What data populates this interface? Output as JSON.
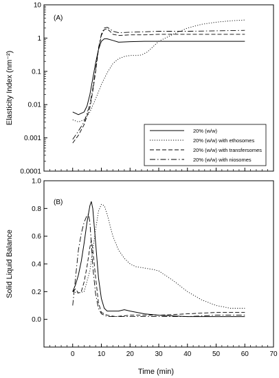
{
  "chart_data": [
    {
      "type": "line",
      "panel_label": "(A)",
      "xlabel": "",
      "ylabel": "Elasticity Index (nm⁻²)",
      "xlim": [
        -10,
        70
      ],
      "ylim": [
        0.0001,
        10
      ],
      "yscale": "log",
      "grid": false,
      "legend_placement": "lower-right",
      "y_ticks": [
        "10",
        "1",
        "0.1",
        "0.01",
        "0.001",
        "0.0001"
      ],
      "series": [
        {
          "name": "20% (w/w)",
          "style": "solid",
          "x": [
            0,
            2,
            4,
            5,
            6,
            7,
            8,
            9,
            10,
            11,
            12,
            14,
            16,
            20,
            25,
            30,
            40,
            50,
            60
          ],
          "y": [
            0.006,
            0.005,
            0.006,
            0.009,
            0.02,
            0.06,
            0.18,
            0.45,
            0.8,
            0.95,
            0.95,
            0.85,
            0.75,
            0.78,
            0.8,
            0.8,
            0.8,
            0.8,
            0.8
          ]
        },
        {
          "name": "20% (w/w) with ethosomes",
          "style": "dotted",
          "x": [
            0,
            2,
            4,
            6,
            8,
            10,
            12,
            14,
            16,
            18,
            20,
            22,
            24,
            26,
            28,
            30,
            35,
            40,
            45,
            50,
            55,
            60
          ],
          "y": [
            0.0035,
            0.003,
            0.0035,
            0.006,
            0.015,
            0.04,
            0.09,
            0.17,
            0.24,
            0.28,
            0.3,
            0.3,
            0.31,
            0.38,
            0.55,
            0.8,
            1.3,
            2.0,
            2.6,
            3.0,
            3.3,
            3.5
          ]
        },
        {
          "name": "20% (w/w) with transfersomes",
          "style": "dashed",
          "x": [
            0,
            2,
            4,
            6,
            7,
            8,
            9,
            10,
            11,
            12,
            13,
            14,
            16,
            20,
            25,
            30,
            40,
            50,
            60
          ],
          "y": [
            0.0007,
            0.0012,
            0.0025,
            0.008,
            0.025,
            0.1,
            0.45,
            1.2,
            1.8,
            1.9,
            1.6,
            1.3,
            1.2,
            1.25,
            1.25,
            1.3,
            1.3,
            1.3,
            1.3
          ]
        },
        {
          "name": "20% (w/w) with niosomes",
          "style": "dashdot",
          "x": [
            0,
            2,
            4,
            6,
            7,
            8,
            9,
            10,
            11,
            12,
            13,
            14,
            16,
            20,
            25,
            30,
            40,
            50,
            60
          ],
          "y": [
            0.0009,
            0.0016,
            0.003,
            0.01,
            0.03,
            0.12,
            0.5,
            1.3,
            2.0,
            2.1,
            1.9,
            1.6,
            1.45,
            1.5,
            1.55,
            1.6,
            1.6,
            1.65,
            1.7
          ]
        }
      ]
    },
    {
      "type": "line",
      "panel_label": "(B)",
      "xlabel": "Time (min)",
      "ylabel": "Solid Liquid Balance",
      "xlim": [
        -10,
        70
      ],
      "ylim": [
        -0.2,
        1.0
      ],
      "yscale": "linear",
      "grid": false,
      "x_ticks": [
        0,
        10,
        20,
        30,
        40,
        50,
        60,
        70
      ],
      "y_ticks": [
        "1.0",
        "0.8",
        "0.6",
        "0.4",
        "0.2",
        "0.0"
      ],
      "series": [
        {
          "name": "20% (w/w)",
          "style": "solid",
          "x": [
            0,
            1,
            2,
            3,
            4,
            5,
            6,
            6.5,
            7,
            8,
            9,
            10,
            11,
            12,
            13,
            14,
            16,
            18,
            20,
            25,
            30,
            40,
            50,
            60
          ],
          "y": [
            0.2,
            0.25,
            0.32,
            0.42,
            0.55,
            0.7,
            0.82,
            0.85,
            0.8,
            0.55,
            0.3,
            0.15,
            0.08,
            0.06,
            0.06,
            0.06,
            0.06,
            0.07,
            0.06,
            0.04,
            0.03,
            0.02,
            0.02,
            0.02
          ]
        },
        {
          "name": "20% (w/w) with ethosomes",
          "style": "dotted",
          "x": [
            0,
            2,
            4,
            6,
            8,
            9,
            10,
            11,
            12,
            13,
            14,
            16,
            18,
            20,
            22,
            25,
            28,
            30,
            35,
            40,
            45,
            50,
            55,
            60
          ],
          "y": [
            0.2,
            0.19,
            0.2,
            0.35,
            0.65,
            0.78,
            0.83,
            0.82,
            0.76,
            0.68,
            0.6,
            0.5,
            0.44,
            0.4,
            0.38,
            0.37,
            0.36,
            0.35,
            0.28,
            0.2,
            0.14,
            0.1,
            0.08,
            0.08
          ]
        },
        {
          "name": "20% (w/w) with transfersomes",
          "style": "dashed",
          "x": [
            0,
            1,
            2,
            3,
            4,
            5,
            6,
            6.5,
            7,
            8,
            9,
            10,
            12,
            15,
            20,
            25,
            30,
            40,
            50,
            60
          ],
          "y": [
            0.2,
            0.22,
            0.19,
            0.2,
            0.27,
            0.38,
            0.52,
            0.57,
            0.5,
            0.3,
            0.12,
            0.05,
            0.03,
            0.02,
            0.03,
            0.03,
            0.03,
            0.04,
            0.05,
            0.05
          ]
        },
        {
          "name": "20% (w/w) with niosomes",
          "style": "dashdot",
          "x": [
            0,
            1,
            2,
            3,
            4,
            5,
            5.5,
            6,
            6.5,
            7,
            8,
            9,
            10,
            12,
            15,
            20,
            25,
            30,
            40,
            50,
            60
          ],
          "y": [
            0.1,
            0.3,
            0.5,
            0.62,
            0.7,
            0.75,
            0.76,
            0.7,
            0.55,
            0.38,
            0.18,
            0.08,
            0.04,
            0.02,
            0.02,
            0.02,
            0.02,
            0.02,
            0.02,
            0.03,
            0.03
          ]
        }
      ]
    }
  ]
}
